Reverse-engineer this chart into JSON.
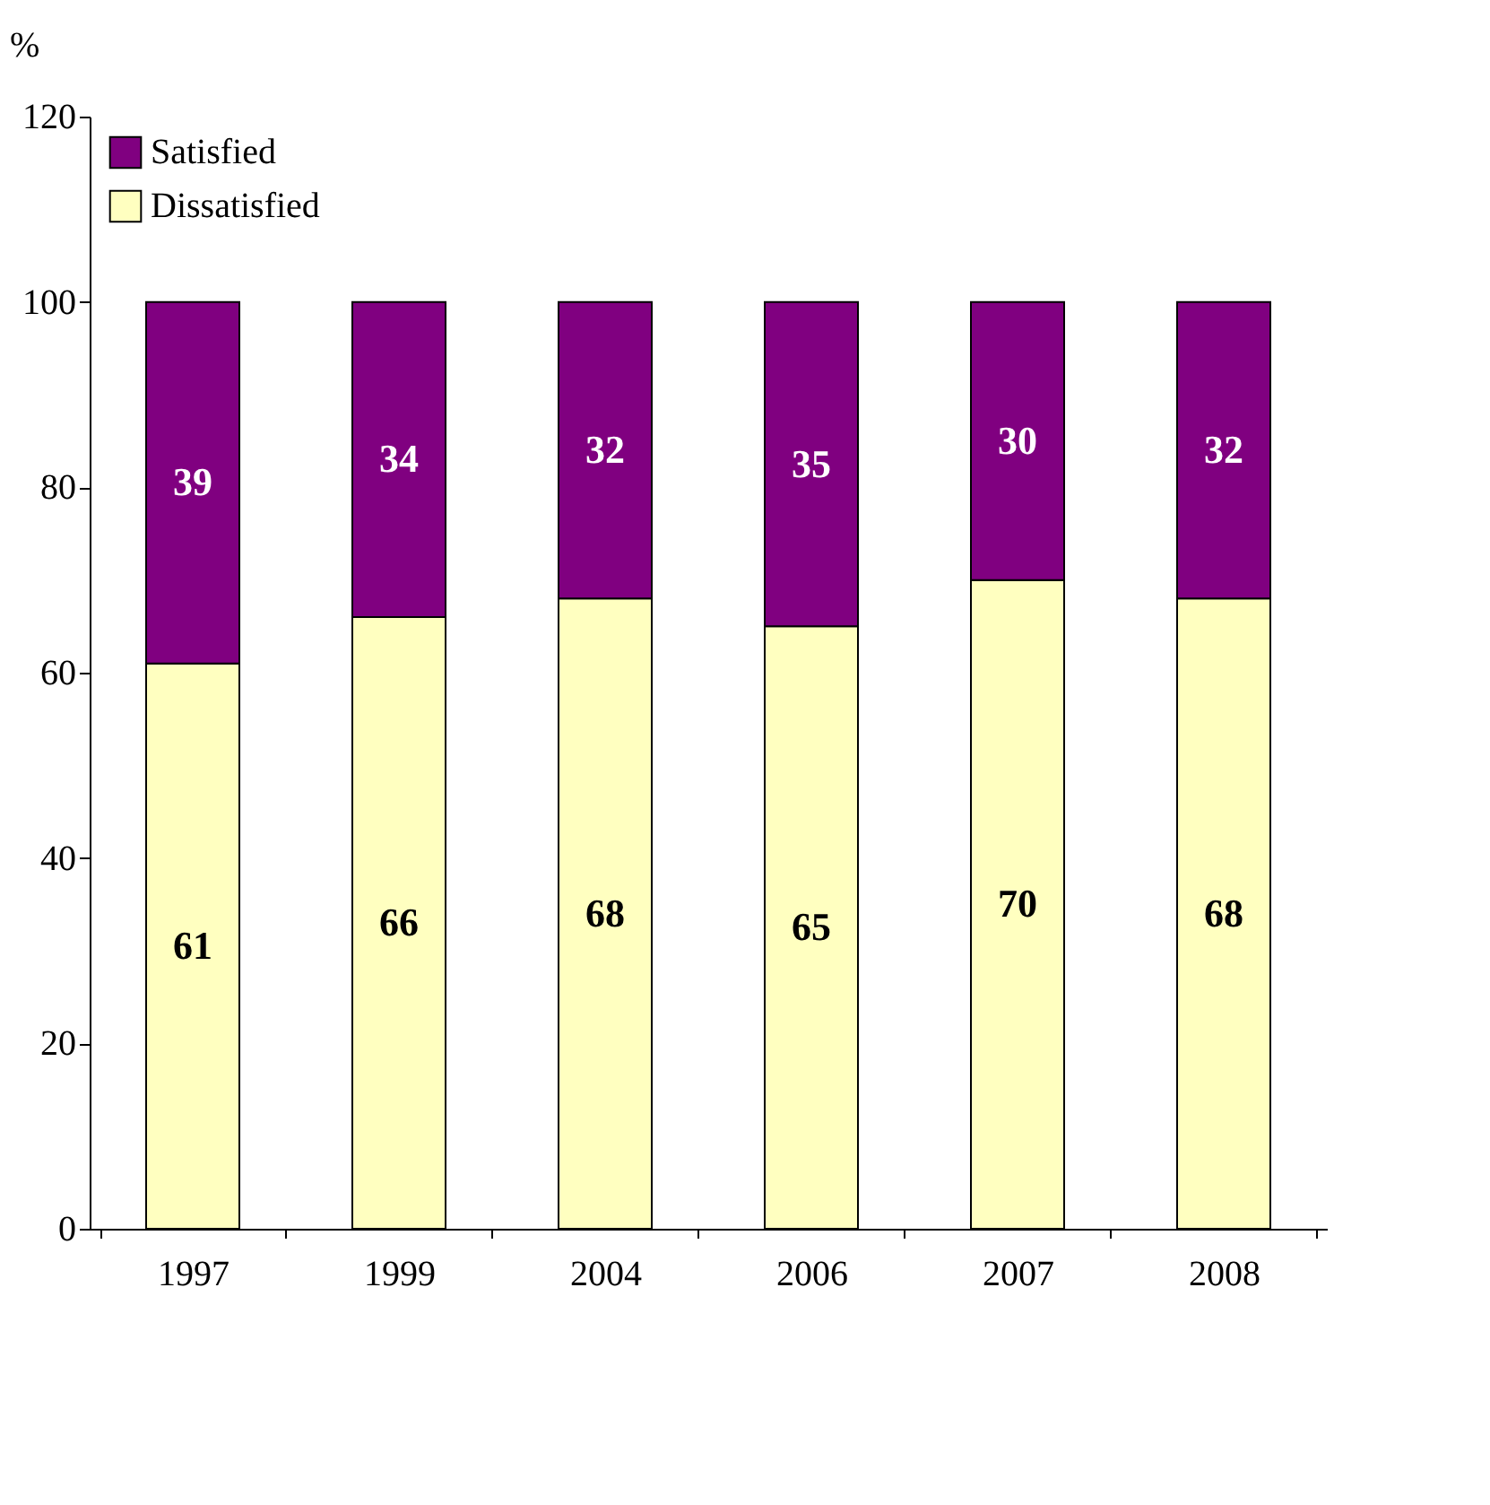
{
  "chart_data": {
    "type": "bar",
    "stacked": true,
    "ylabel": "%",
    "categories": [
      "1997",
      "1999",
      "2004",
      "2006",
      "2007",
      "2008"
    ],
    "series": [
      {
        "name": "Dissatisfied",
        "color": "#ffffc0",
        "values": [
          61,
          66,
          68,
          65,
          70,
          68
        ]
      },
      {
        "name": "Satisfied",
        "color": "#800080",
        "values": [
          39,
          34,
          32,
          35,
          30,
          32
        ]
      }
    ],
    "ylim": [
      0,
      120
    ],
    "yticks": [
      0,
      20,
      40,
      60,
      80,
      100,
      120
    ],
    "grid": false,
    "legend": "top left",
    "data_labels": true
  }
}
